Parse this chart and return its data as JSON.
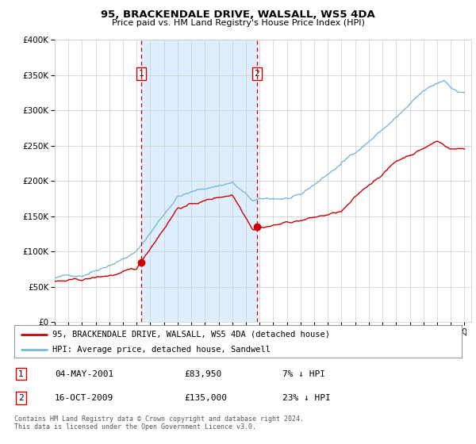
{
  "title": "95, BRACKENDALE DRIVE, WALSALL, WS5 4DA",
  "subtitle": "Price paid vs. HM Land Registry's House Price Index (HPI)",
  "legend_line1": "95, BRACKENDALE DRIVE, WALSALL, WS5 4DA (detached house)",
  "legend_line2": "HPI: Average price, detached house, Sandwell",
  "transaction1_date": "04-MAY-2001",
  "transaction1_price": "£83,950",
  "transaction1_hpi": "7% ↓ HPI",
  "transaction2_date": "16-OCT-2009",
  "transaction2_price": "£135,000",
  "transaction2_hpi": "23% ↓ HPI",
  "footnote": "Contains HM Land Registry data © Crown copyright and database right 2024.\nThis data is licensed under the Open Government Licence v3.0.",
  "hpi_color": "#7ab8d9",
  "price_color": "#cc0000",
  "shade_color": "#ddeeff",
  "marker_color": "#cc0000",
  "grid_color": "#cccccc",
  "bg_color": "#ffffff",
  "ylim": [
    0,
    400000
  ],
  "start_year": 1995,
  "end_year": 2025,
  "transaction1_year": 2001.35,
  "transaction2_year": 2009.8,
  "transaction1_value": 83950,
  "transaction2_value": 135000
}
